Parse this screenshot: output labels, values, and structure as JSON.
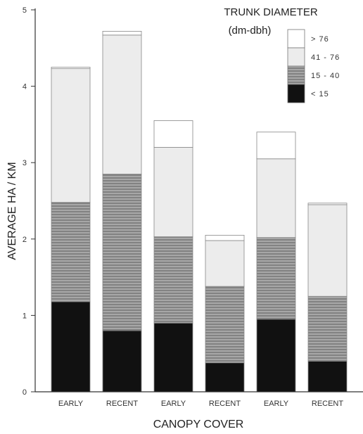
{
  "chart_data": {
    "type": "bar",
    "stacked": true,
    "categories": [
      "EARLY",
      "RECENT",
      "EARLY",
      "RECENT",
      "EARLY",
      "RECENT"
    ],
    "series": [
      {
        "name": "< 15",
        "color": "#111111",
        "values": [
          1.18,
          0.8,
          0.9,
          0.38,
          0.95,
          0.4
        ]
      },
      {
        "name": "15 - 40",
        "color": "#8c8c8c",
        "values": [
          1.3,
          2.05,
          1.13,
          1.0,
          1.07,
          0.85
        ]
      },
      {
        "name": "41 - 76",
        "color": "#ececec",
        "values": [
          1.75,
          1.82,
          1.17,
          0.6,
          1.03,
          1.2
        ]
      },
      {
        "name": "> 76",
        "color": "#ffffff",
        "values": [
          0.02,
          0.05,
          0.35,
          0.07,
          0.35,
          0.02
        ]
      }
    ],
    "legend_order": [
      "> 76",
      "41 - 76",
      "15 - 40",
      "< 15"
    ],
    "legend_placement": "top-right",
    "legend_title_line1": "TRUNK DIAMETER",
    "legend_title_line2": "(dm-dbh)",
    "xlabel": "CANOPY COVER",
    "ylabel": "AVERAGE HA / KM",
    "ylim": [
      0,
      5
    ],
    "yticks": [
      0,
      1,
      2,
      3,
      4,
      5
    ],
    "grid": false
  }
}
